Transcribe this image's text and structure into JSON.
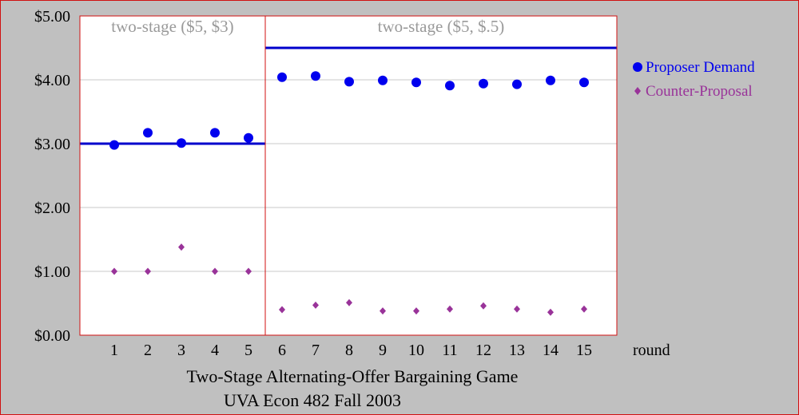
{
  "chart_data": {
    "type": "scatter",
    "title": "Two-Stage Alternating-Offer Bargaining Game",
    "subtitle": "UVA Econ 482  Fall 2003",
    "xlabel": "round",
    "ylabel": "",
    "x": [
      1,
      2,
      3,
      4,
      5,
      6,
      7,
      8,
      9,
      10,
      11,
      12,
      13,
      14,
      15
    ],
    "xlim": [
      0,
      16
    ],
    "ylim": [
      0,
      5
    ],
    "y_ticks": [
      "$0.00",
      "$1.00",
      "$2.00",
      "$3.00",
      "$4.00",
      "$5.00"
    ],
    "x_ticks": [
      "1",
      "2",
      "3",
      "4",
      "5",
      "6",
      "7",
      "8",
      "9",
      "10",
      "11",
      "12",
      "13",
      "14",
      "15"
    ],
    "grid": true,
    "legend_position": "right",
    "series": [
      {
        "name": "Proposer Demand",
        "color": "#0000ee",
        "values": [
          2.98,
          3.17,
          3.01,
          3.17,
          3.09,
          4.04,
          4.06,
          3.97,
          3.99,
          3.96,
          3.91,
          3.94,
          3.93,
          3.99,
          3.96
        ]
      },
      {
        "name": "Counter-Proposal",
        "color": "#993399",
        "values": [
          1.0,
          1.0,
          1.38,
          1.0,
          1.0,
          0.4,
          0.47,
          0.51,
          0.38,
          0.38,
          0.41,
          0.46,
          0.41,
          0.36,
          0.41
        ]
      }
    ],
    "stages": [
      {
        "label": "two-stage ($5, $3)",
        "rounds": [
          1,
          5
        ],
        "equilibrium": 3.0
      },
      {
        "label": "two-stage ($5, $.5)",
        "rounds": [
          6,
          15
        ],
        "equilibrium": 4.5
      }
    ],
    "colors": {
      "equilibrium_line": "#0000cc",
      "plot_border": "#d01010",
      "background": "#c0c0c0",
      "plot_bg": "#ffffff",
      "stage_label": "#9a9a9a"
    }
  }
}
